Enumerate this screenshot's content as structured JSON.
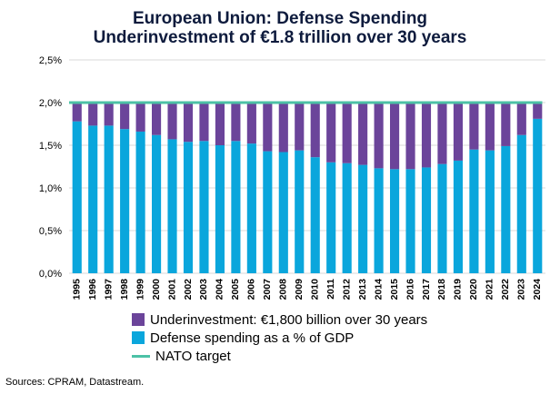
{
  "chart_data": {
    "type": "bar",
    "title": [
      "European Union: Defense Spending",
      "Underinvestment of €1.8 trillion over 30 years"
    ],
    "categories": [
      "1995",
      "1996",
      "1997",
      "1998",
      "1999",
      "2000",
      "2001",
      "2002",
      "2003",
      "2004",
      "2005",
      "2006",
      "2007",
      "2008",
      "2009",
      "2010",
      "2011",
      "2012",
      "2013",
      "2014",
      "2015",
      "2016",
      "2017",
      "2018",
      "2019",
      "2020",
      "2021",
      "2022",
      "2023",
      "2024"
    ],
    "series": [
      {
        "name": "Defense spending as a % of GDP",
        "color": "#0aa6dc",
        "values": [
          1.78,
          1.73,
          1.73,
          1.69,
          1.66,
          1.62,
          1.57,
          1.54,
          1.55,
          1.5,
          1.55,
          1.52,
          1.43,
          1.42,
          1.44,
          1.36,
          1.3,
          1.29,
          1.27,
          1.23,
          1.22,
          1.22,
          1.24,
          1.28,
          1.32,
          1.45,
          1.44,
          1.49,
          1.62,
          1.81
        ]
      },
      {
        "name": "Underinvestment: €1,800 billion over 30 years",
        "color": "#6b449a",
        "values": [
          0.22,
          0.27,
          0.27,
          0.31,
          0.34,
          0.38,
          0.43,
          0.46,
          0.45,
          0.5,
          0.45,
          0.48,
          0.57,
          0.58,
          0.56,
          0.64,
          0.7,
          0.71,
          0.73,
          0.77,
          0.78,
          0.78,
          0.76,
          0.72,
          0.68,
          0.55,
          0.56,
          0.51,
          0.38,
          0.19
        ]
      }
    ],
    "nato_target": {
      "name": "NATO target",
      "value": 2.0,
      "color": "#4cc1a6"
    },
    "ylim": [
      0,
      2.5
    ],
    "yticks": [
      0,
      0.5,
      1.0,
      1.5,
      2.0,
      2.5
    ],
    "ytick_labels": [
      "0,0%",
      "0,5%",
      "1,0%",
      "1,5%",
      "2,0%",
      "2,5%"
    ],
    "grid": true,
    "legend_position": "bottom-center"
  },
  "legend": {
    "items": [
      {
        "label": "Underinvestment: €1,800 billion over 30 years",
        "color": "#6b449a",
        "kind": "box"
      },
      {
        "label": "Defense spending as a % of GDP",
        "color": "#0aa6dc",
        "kind": "box"
      },
      {
        "label": "NATO target",
        "color": "#4cc1a6",
        "kind": "line"
      }
    ]
  },
  "source": "Sources: CPRAM, Datastream."
}
